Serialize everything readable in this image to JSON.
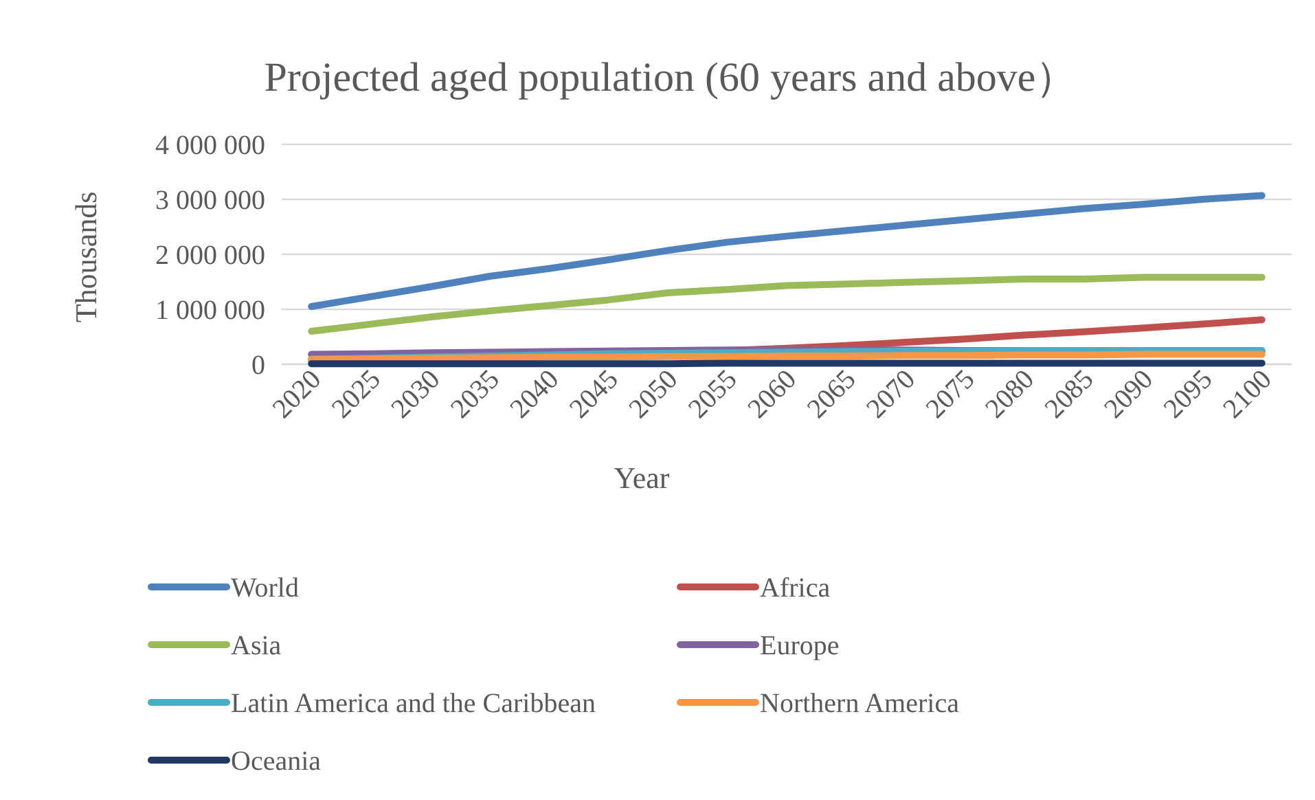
{
  "chart_data": {
    "type": "line",
    "title": "Projected aged population (60 years and above）",
    "xlabel": "Year",
    "ylabel": "Thousands",
    "categories": [
      "2020",
      "2025",
      "2030",
      "2035",
      "2040",
      "2045",
      "2050",
      "2055",
      "2060",
      "2065",
      "2070",
      "2075",
      "2080",
      "2085",
      "2090",
      "2095",
      "2100"
    ],
    "series": [
      {
        "name": "World",
        "color": "#4f81bd",
        "values": [
          1050000,
          1230000,
          1410000,
          1600000,
          1740000,
          1900000,
          2070000,
          2220000,
          2330000,
          2430000,
          2530000,
          2630000,
          2730000,
          2830000,
          2910000,
          3000000,
          3070000
        ]
      },
      {
        "name": "Africa",
        "color": "#c0504d",
        "values": [
          70000,
          80000,
          100000,
          120000,
          140000,
          170000,
          210000,
          250000,
          290000,
          340000,
          400000,
          460000,
          530000,
          590000,
          660000,
          730000,
          810000
        ]
      },
      {
        "name": "Asia",
        "color": "#9bbb59",
        "values": [
          600000,
          730000,
          860000,
          970000,
          1070000,
          1170000,
          1300000,
          1360000,
          1430000,
          1460000,
          1490000,
          1520000,
          1550000,
          1550000,
          1580000,
          1580000,
          1580000
        ]
      },
      {
        "name": "Europe",
        "color": "#8064a2",
        "values": [
          180000,
          190000,
          210000,
          220000,
          230000,
          240000,
          250000,
          260000,
          260000,
          260000,
          260000,
          250000,
          250000,
          250000,
          240000,
          240000,
          230000
        ]
      },
      {
        "name": "Latin America and the Caribbean",
        "color": "#4bacc6",
        "values": [
          90000,
          110000,
          130000,
          150000,
          170000,
          190000,
          200000,
          210000,
          220000,
          230000,
          240000,
          240000,
          250000,
          250000,
          250000,
          250000,
          250000
        ]
      },
      {
        "name": "Northern America",
        "color": "#f79646",
        "values": [
          90000,
          100000,
          110000,
          120000,
          130000,
          130000,
          140000,
          140000,
          150000,
          150000,
          160000,
          160000,
          170000,
          170000,
          180000,
          180000,
          180000
        ]
      },
      {
        "name": "Oceania",
        "color": "#1f3864",
        "values": [
          10000,
          10000,
          10000,
          10000,
          10000,
          10000,
          10000,
          20000,
          20000,
          20000,
          20000,
          20000,
          20000,
          20000,
          20000,
          20000,
          20000
        ]
      }
    ],
    "ylim": [
      0,
      4000000
    ],
    "yticks": [
      {
        "value": 0,
        "label": "0"
      },
      {
        "value": 1000000,
        "label": "1 000 000"
      },
      {
        "value": 2000000,
        "label": "2 000 000"
      },
      {
        "value": 3000000,
        "label": "3 000 000"
      },
      {
        "value": 4000000,
        "label": "4 000 000"
      }
    ],
    "grid": "y",
    "legend": "bottom",
    "line_style": "solid",
    "marker": "none"
  }
}
